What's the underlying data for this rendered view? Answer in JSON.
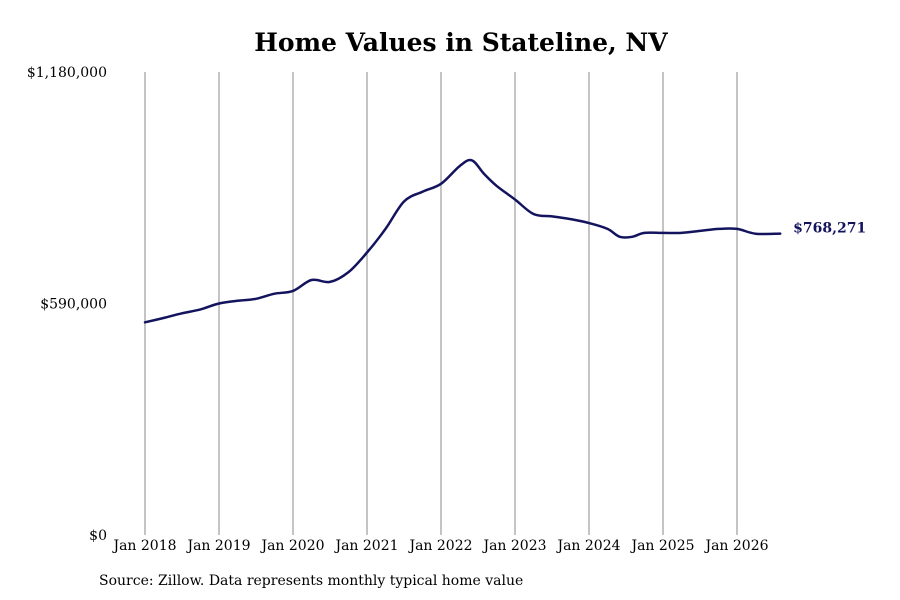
{
  "source_note": "Source: Zillow. Data represents monthly typical home value",
  "colors": {
    "line": "#14145e",
    "grid": "#888888",
    "text": "#000000"
  },
  "chart_data": {
    "type": "line",
    "title": "Home Values in Stateline, NV",
    "xlabel": "",
    "ylabel": "",
    "ylim": [
      0,
      1180000
    ],
    "y_ticks": [
      {
        "value": 0,
        "label": "$0"
      },
      {
        "value": 590000,
        "label": "$590,000"
      },
      {
        "value": 1180000,
        "label": "$1,180,000"
      }
    ],
    "x_range": [
      "2018-01",
      "2026-08"
    ],
    "x_ticks": [
      {
        "date": "2018-01",
        "label": "Jan 2018"
      },
      {
        "date": "2019-01",
        "label": "Jan 2019"
      },
      {
        "date": "2020-01",
        "label": "Jan 2020"
      },
      {
        "date": "2021-01",
        "label": "Jan 2021"
      },
      {
        "date": "2022-01",
        "label": "Jan 2022"
      },
      {
        "date": "2023-01",
        "label": "Jan 2023"
      },
      {
        "date": "2024-01",
        "label": "Jan 2024"
      },
      {
        "date": "2025-01",
        "label": "Jan 2025"
      },
      {
        "date": "2026-01",
        "label": "Jan 2026"
      }
    ],
    "grid": "vertical lines at x ticks",
    "end_label": "$768,271",
    "series": [
      {
        "points": [
          {
            "date": "2018-01",
            "value": 542000
          },
          {
            "date": "2018-04",
            "value": 553000
          },
          {
            "date": "2018-07",
            "value": 565000
          },
          {
            "date": "2018-10",
            "value": 575000
          },
          {
            "date": "2019-01",
            "value": 590000
          },
          {
            "date": "2019-04",
            "value": 597000
          },
          {
            "date": "2019-07",
            "value": 602000
          },
          {
            "date": "2019-10",
            "value": 615000
          },
          {
            "date": "2020-01",
            "value": 622000
          },
          {
            "date": "2020-04",
            "value": 650000
          },
          {
            "date": "2020-07",
            "value": 645000
          },
          {
            "date": "2020-10",
            "value": 670000
          },
          {
            "date": "2021-01",
            "value": 720000
          },
          {
            "date": "2021-04",
            "value": 780000
          },
          {
            "date": "2021-07",
            "value": 850000
          },
          {
            "date": "2021-10",
            "value": 875000
          },
          {
            "date": "2022-01",
            "value": 895000
          },
          {
            "date": "2022-04",
            "value": 940000
          },
          {
            "date": "2022-06",
            "value": 955000
          },
          {
            "date": "2022-08",
            "value": 920000
          },
          {
            "date": "2022-10",
            "value": 890000
          },
          {
            "date": "2023-01",
            "value": 855000
          },
          {
            "date": "2023-04",
            "value": 818000
          },
          {
            "date": "2023-07",
            "value": 812000
          },
          {
            "date": "2023-10",
            "value": 805000
          },
          {
            "date": "2024-01",
            "value": 795000
          },
          {
            "date": "2024-04",
            "value": 780000
          },
          {
            "date": "2024-06",
            "value": 760000
          },
          {
            "date": "2024-08",
            "value": 760000
          },
          {
            "date": "2024-10",
            "value": 770000
          },
          {
            "date": "2025-01",
            "value": 770000
          },
          {
            "date": "2025-04",
            "value": 770000
          },
          {
            "date": "2025-07",
            "value": 775000
          },
          {
            "date": "2025-10",
            "value": 780000
          },
          {
            "date": "2026-01",
            "value": 780000
          },
          {
            "date": "2026-04",
            "value": 768000
          },
          {
            "date": "2026-08",
            "value": 768271
          }
        ]
      }
    ]
  }
}
